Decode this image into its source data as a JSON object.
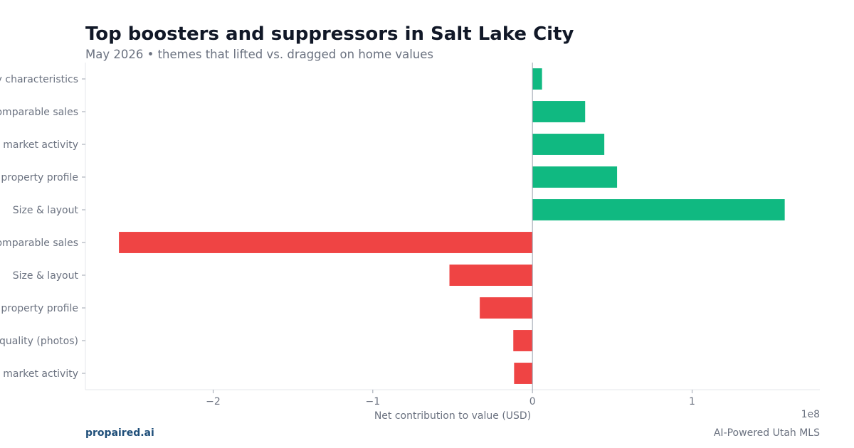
{
  "header": {
    "title": "Top boosters and suppressors in Salt Lake City",
    "subtitle": "May 2026 • themes that lifted vs. dragged on home values"
  },
  "footer": {
    "brand": "propaired.ai",
    "tagline": "AI-Powered Utah MLS"
  },
  "colors": {
    "positive": "#10b981",
    "negative": "#ef4444",
    "axis": "#9ca3af",
    "text": "#6b7280"
  },
  "chart_data": {
    "type": "bar",
    "orientation": "horizontal",
    "title": "Top boosters and suppressors in Salt Lake City",
    "subtitle": "May 2026 • themes that lifted vs. dragged on home values",
    "xlabel": "Net contribution to value (USD)",
    "ylabel": "",
    "x_scale_label": "1e8",
    "xlim": [
      -2.8,
      1.8
    ],
    "x_ticks": [
      -2,
      -1,
      0,
      1
    ],
    "x_tick_labels": [
      "−2",
      "−1",
      "0",
      "1"
    ],
    "grid": false,
    "categories": [
      "y characteristics",
      "omparable sales",
      " market activity",
      " property profile",
      "Size & layout",
      "omparable sales",
      "Size & layout",
      " property profile",
      "quality (photos)",
      " market activity"
    ],
    "values": [
      0.06,
      0.33,
      0.45,
      0.53,
      1.58,
      -2.59,
      -0.52,
      -0.33,
      -0.12,
      -0.115
    ]
  }
}
